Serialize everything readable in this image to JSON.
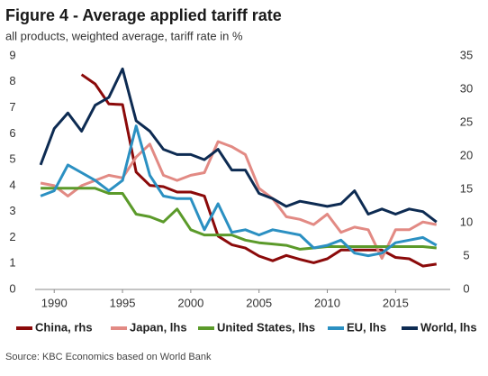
{
  "chart_data": {
    "type": "line",
    "title": "Figure 4 - Average applied tariff rate",
    "subtitle": "all products, weighted average, tariff rate in %",
    "source": "Source: KBC Economics based on World Bank",
    "x": [
      1989,
      1990,
      1991,
      1992,
      1993,
      1994,
      1995,
      1996,
      1997,
      1998,
      1999,
      2000,
      2001,
      2002,
      2003,
      2004,
      2005,
      2006,
      2007,
      2008,
      2009,
      2010,
      2011,
      2012,
      2013,
      2014,
      2015,
      2016,
      2017,
      2018
    ],
    "xlim": [
      1988.6,
      2019
    ],
    "xticks": [
      1990,
      1995,
      2000,
      2005,
      2010,
      2015
    ],
    "ylim": [
      0,
      9
    ],
    "yticks": [
      0,
      1,
      2,
      3,
      4,
      5,
      6,
      7,
      8,
      9
    ],
    "y2lim": [
      0,
      35
    ],
    "y2ticks": [
      0,
      5,
      10,
      15,
      20,
      25,
      30,
      35
    ],
    "series": [
      {
        "name": "China, rhs",
        "color": "#8b0a0a",
        "axis": "y2",
        "values": [
          null,
          null,
          null,
          32.2,
          30.8,
          27.8,
          27.7,
          17.6,
          15.6,
          15.4,
          14.6,
          14.6,
          14.0,
          8.0,
          6.7,
          6.2,
          5.0,
          4.3,
          5.1,
          4.5,
          4.0,
          4.6,
          5.9,
          5.9,
          5.9,
          5.9,
          4.8,
          4.6,
          3.5,
          3.8
        ]
      },
      {
        "name": "Japan, lhs",
        "color": "#e28a84",
        "values": [
          4.1,
          4.0,
          3.6,
          4.0,
          4.2,
          4.4,
          4.3,
          5.1,
          5.6,
          4.4,
          4.2,
          4.4,
          4.5,
          5.7,
          5.5,
          5.2,
          3.9,
          3.5,
          2.8,
          2.7,
          2.5,
          2.9,
          2.2,
          2.4,
          2.3,
          1.2,
          2.3,
          2.3,
          2.6,
          2.5
        ]
      },
      {
        "name": "United States, lhs",
        "color": "#5b9a2a",
        "values": [
          3.9,
          3.9,
          3.9,
          3.9,
          3.9,
          3.7,
          3.7,
          2.9,
          2.8,
          2.6,
          3.1,
          2.3,
          2.1,
          2.1,
          2.1,
          1.9,
          1.8,
          1.75,
          1.7,
          1.55,
          1.6,
          1.65,
          1.65,
          1.65,
          1.65,
          1.65,
          1.65,
          1.65,
          1.65,
          1.6
        ]
      },
      {
        "name": "EU, lhs",
        "color": "#2b90c2",
        "values": [
          3.6,
          3.8,
          4.8,
          4.5,
          4.2,
          3.8,
          4.2,
          6.3,
          4.4,
          3.6,
          3.5,
          3.5,
          2.3,
          3.3,
          2.2,
          2.3,
          2.1,
          2.3,
          2.2,
          2.1,
          1.6,
          1.7,
          1.9,
          1.4,
          1.3,
          1.4,
          1.8,
          1.9,
          2.0,
          1.7
        ]
      },
      {
        "name": "World, lhs",
        "color": "#0d2b52",
        "values": [
          4.8,
          6.2,
          6.8,
          6.1,
          7.1,
          7.4,
          8.5,
          6.5,
          6.1,
          5.4,
          5.2,
          5.2,
          5.0,
          5.4,
          4.6,
          4.6,
          3.7,
          3.5,
          3.2,
          3.4,
          3.3,
          3.2,
          3.3,
          3.8,
          2.9,
          3.1,
          2.9,
          3.1,
          3.0,
          2.6
        ]
      }
    ]
  }
}
